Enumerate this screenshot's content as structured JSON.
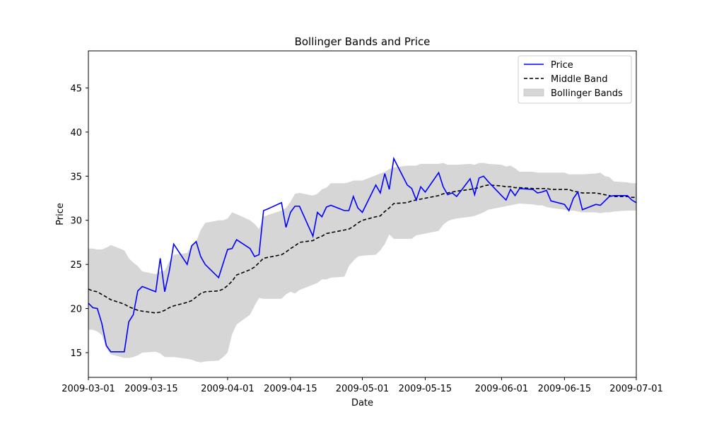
{
  "chart_data": {
    "type": "line",
    "title": "Bollinger Bands and Price",
    "xlabel": "Date",
    "ylabel": "Price",
    "xlim": [
      "2009-03-01",
      "2009-07-01"
    ],
    "ylim": [
      12.2,
      49.2
    ],
    "x_ticks": [
      "2009-03-01",
      "2009-03-15",
      "2009-04-01",
      "2009-04-15",
      "2009-05-01",
      "2009-05-15",
      "2009-06-01",
      "2009-06-15",
      "2009-07-01"
    ],
    "y_ticks": [
      15,
      20,
      25,
      30,
      35,
      40,
      45
    ],
    "grid": false,
    "legend_position": "top-right",
    "colors": {
      "price": "#0000ff",
      "middle": "#000000",
      "bands_fill": "#d6d6d6"
    },
    "x": [
      "2009-03-01",
      "2009-03-02",
      "2009-03-03",
      "2009-03-04",
      "2009-03-05",
      "2009-03-06",
      "2009-03-09",
      "2009-03-10",
      "2009-03-11",
      "2009-03-12",
      "2009-03-13",
      "2009-03-16",
      "2009-03-17",
      "2009-03-18",
      "2009-03-19",
      "2009-03-20",
      "2009-03-23",
      "2009-03-24",
      "2009-03-25",
      "2009-03-26",
      "2009-03-27",
      "2009-03-30",
      "2009-03-31",
      "2009-04-01",
      "2009-04-02",
      "2009-04-03",
      "2009-04-06",
      "2009-04-07",
      "2009-04-08",
      "2009-04-09",
      "2009-04-10",
      "2009-04-13",
      "2009-04-14",
      "2009-04-15",
      "2009-04-16",
      "2009-04-17",
      "2009-04-20",
      "2009-04-21",
      "2009-04-22",
      "2009-04-23",
      "2009-04-24",
      "2009-04-27",
      "2009-04-28",
      "2009-04-29",
      "2009-04-30",
      "2009-05-01",
      "2009-05-04",
      "2009-05-05",
      "2009-05-06",
      "2009-05-07",
      "2009-05-08",
      "2009-05-11",
      "2009-05-12",
      "2009-05-13",
      "2009-05-14",
      "2009-05-15",
      "2009-05-18",
      "2009-05-19",
      "2009-05-20",
      "2009-05-21",
      "2009-05-22",
      "2009-05-25",
      "2009-05-26",
      "2009-05-27",
      "2009-05-28",
      "2009-05-29",
      "2009-06-01",
      "2009-06-02",
      "2009-06-03",
      "2009-06-04",
      "2009-06-05",
      "2009-06-08",
      "2009-06-09",
      "2009-06-10",
      "2009-06-11",
      "2009-06-12",
      "2009-06-15",
      "2009-06-16",
      "2009-06-17",
      "2009-06-18",
      "2009-06-19",
      "2009-06-22",
      "2009-06-23",
      "2009-06-24",
      "2009-06-25",
      "2009-06-26",
      "2009-06-29",
      "2009-06-30",
      "2009-07-01"
    ],
    "series": [
      {
        "name": "Price",
        "values": [
          20.6,
          20.1,
          20.0,
          18.3,
          15.8,
          15.1,
          15.1,
          18.5,
          19.3,
          22.0,
          22.5,
          21.9,
          25.7,
          21.9,
          24.2,
          27.3,
          25.0,
          27.1,
          27.6,
          25.9,
          25.0,
          23.5,
          25.1,
          26.7,
          26.8,
          27.8,
          26.8,
          25.9,
          26.1,
          31.1,
          31.3,
          32.0,
          29.2,
          30.9,
          31.6,
          31.6,
          28.2,
          30.9,
          30.4,
          31.5,
          31.7,
          31.1,
          31.1,
          32.7,
          31.4,
          30.9,
          34.0,
          33.1,
          35.3,
          33.5,
          37.0,
          34.0,
          33.6,
          32.3,
          33.8,
          33.2,
          35.4,
          33.8,
          32.9,
          33.1,
          32.7,
          34.7,
          32.9,
          34.8,
          35.0,
          34.4,
          32.8,
          32.3,
          33.5,
          32.8,
          33.6,
          33.5,
          33.1,
          33.2,
          33.4,
          32.2,
          31.8,
          31.1,
          32.5,
          33.2,
          31.2,
          31.8,
          31.7,
          32.2,
          32.7,
          32.8,
          32.8,
          32.3,
          32.0
        ]
      },
      {
        "name": "Middle Band",
        "values": [
          22.2,
          22.0,
          21.9,
          21.6,
          21.3,
          21.0,
          20.5,
          20.2,
          20.0,
          19.8,
          19.7,
          19.5,
          19.6,
          19.8,
          20.1,
          20.3,
          20.7,
          20.9,
          21.3,
          21.7,
          21.9,
          22.0,
          22.2,
          22.6,
          23.1,
          23.8,
          24.4,
          24.7,
          25.2,
          25.7,
          25.8,
          26.1,
          26.4,
          26.8,
          27.1,
          27.5,
          27.7,
          28.0,
          28.2,
          28.5,
          28.6,
          28.9,
          29.0,
          29.3,
          29.7,
          30.0,
          30.4,
          30.5,
          31.0,
          31.4,
          31.9,
          32.0,
          32.2,
          32.3,
          32.4,
          32.5,
          32.8,
          33.0,
          33.1,
          33.2,
          33.3,
          33.5,
          33.6,
          33.7,
          33.9,
          34.0,
          33.9,
          33.8,
          33.8,
          33.7,
          33.7,
          33.6,
          33.6,
          33.6,
          33.6,
          33.5,
          33.5,
          33.5,
          33.3,
          33.2,
          33.1,
          33.1,
          33.0,
          32.9,
          32.8,
          32.7,
          32.7,
          32.6,
          32.6
        ]
      },
      {
        "name": "Bollinger Bands",
        "upper": [
          26.8,
          26.8,
          26.7,
          26.7,
          26.9,
          27.2,
          26.6,
          25.7,
          25.2,
          24.8,
          24.2,
          23.9,
          24.2,
          24.3,
          25.3,
          26.1,
          26.3,
          27.2,
          27.6,
          28.9,
          29.7,
          30.0,
          30.0,
          30.2,
          30.9,
          30.7,
          30.0,
          29.6,
          29.0,
          30.4,
          30.6,
          31.1,
          31.4,
          32.1,
          33.0,
          33.1,
          32.8,
          33.0,
          33.5,
          33.7,
          34.2,
          34.2,
          34.3,
          34.5,
          34.5,
          34.5,
          35.1,
          35.3,
          35.5,
          35.8,
          36.0,
          36.2,
          36.2,
          36.2,
          36.4,
          36.4,
          36.4,
          36.5,
          36.3,
          36.3,
          36.3,
          36.4,
          36.3,
          36.5,
          36.5,
          36.4,
          36.3,
          36.1,
          36.2,
          35.9,
          35.5,
          35.5,
          35.4,
          35.4,
          35.4,
          35.4,
          35.4,
          35.2,
          35.2,
          35.2,
          35.2,
          35.3,
          35.4,
          35.0,
          34.9,
          34.4,
          34.3,
          34.2,
          34.2
        ],
        "lower": [
          17.6,
          17.6,
          17.4,
          17.0,
          15.5,
          14.8,
          14.4,
          14.4,
          14.5,
          14.7,
          15.0,
          15.1,
          14.9,
          14.5,
          14.5,
          14.5,
          14.3,
          14.2,
          14.0,
          13.9,
          14.0,
          14.1,
          14.5,
          15.0,
          17.1,
          18.2,
          19.3,
          20.3,
          21.2,
          21.1,
          21.1,
          21.1,
          21.6,
          21.9,
          21.7,
          22.1,
          22.7,
          22.9,
          23.3,
          23.3,
          23.5,
          23.6,
          24.8,
          25.4,
          25.9,
          26.0,
          26.1,
          26.6,
          27.3,
          28.4,
          27.9,
          27.9,
          27.9,
          28.3,
          28.4,
          28.5,
          28.8,
          29.5,
          29.9,
          30.1,
          30.2,
          30.4,
          30.5,
          30.7,
          30.9,
          31.2,
          31.5,
          31.6,
          31.7,
          31.8,
          31.9,
          31.8,
          31.7,
          31.7,
          31.5,
          31.4,
          31.2,
          31.1,
          31.1,
          31.0,
          30.9,
          30.9,
          30.8,
          30.9,
          30.9,
          31.0,
          31.1,
          31.1,
          31.1
        ]
      }
    ]
  }
}
